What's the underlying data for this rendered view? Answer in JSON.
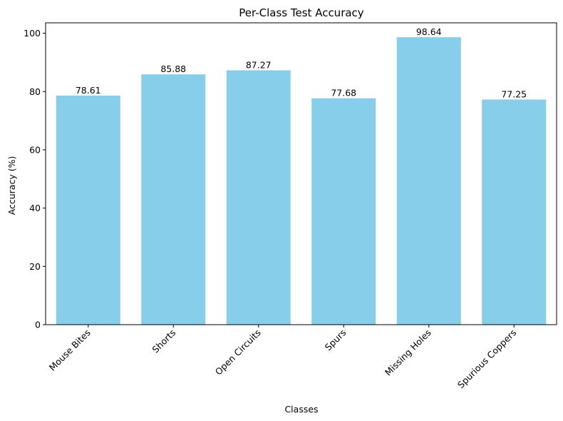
{
  "chart_data": {
    "type": "bar",
    "title": "Per-Class Test Accuracy",
    "xlabel": "Classes",
    "ylabel": "Accuracy (%)",
    "categories": [
      "Mouse Bites",
      "Shorts",
      "Open Circuits",
      "Spurs",
      "Missing Holes",
      "Spurious Coppers"
    ],
    "values": [
      78.61,
      85.88,
      87.27,
      77.68,
      98.64,
      77.25
    ],
    "value_labels": [
      "78.61",
      "85.88",
      "87.27",
      "77.68",
      "98.64",
      "77.25"
    ],
    "yticks": [
      0,
      20,
      40,
      60,
      80,
      100
    ],
    "ylim": [
      0,
      103.57
    ],
    "bar_color": "#87ceeb",
    "grid": false,
    "legend": false
  }
}
